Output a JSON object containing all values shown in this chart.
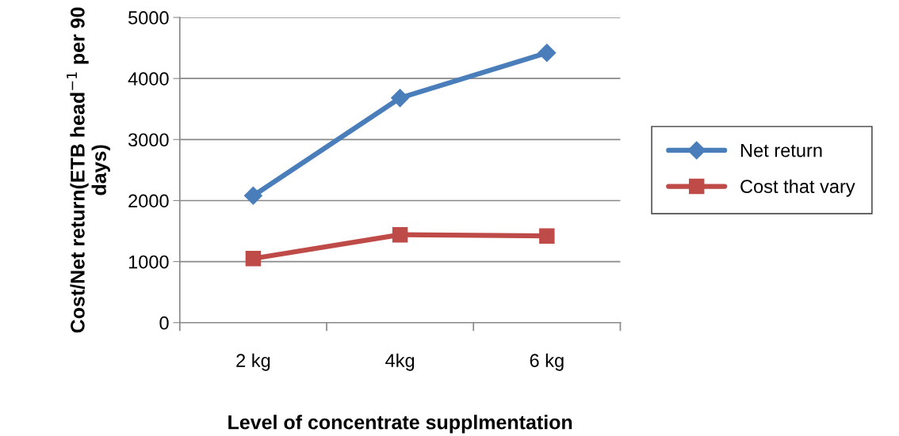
{
  "chart_data": {
    "type": "line",
    "xlabel": "Level of concentrate supplmentation",
    "ylabel": "Cost/Net return(ETB head$^{−1}$ per 90 days)",
    "categories": [
      "2 kg",
      "4kg",
      "6 kg"
    ],
    "series": [
      {
        "name": "Net return",
        "color": "#4a7ebb",
        "marker": "diamond",
        "values": [
          2080,
          3680,
          4420
        ]
      },
      {
        "name": "Cost that vary",
        "color": "#be4b48",
        "marker": "square",
        "values": [
          1050,
          1440,
          1420
        ]
      }
    ],
    "ylim": [
      0,
      5000
    ],
    "yticks": [
      0,
      1000,
      2000,
      3000,
      4000,
      5000
    ],
    "grid": "y",
    "legend": "right",
    "line_style": "solid"
  }
}
